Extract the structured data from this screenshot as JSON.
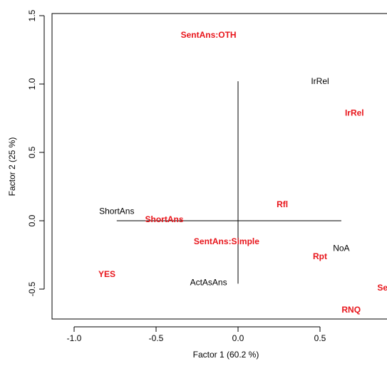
{
  "chart_data": {
    "type": "scatter",
    "title": "",
    "xlabel": "Factor 1  (60.2 %)",
    "ylabel": "Factor 2  (25 %)",
    "xlim": [
      -1.2,
      0.9
    ],
    "ylim": [
      -0.72,
      1.52
    ],
    "xticks": [
      {
        "value": -1.0,
        "label": "-1.0"
      },
      {
        "value": -0.5,
        "label": "-0.5"
      },
      {
        "value": 0.0,
        "label": "0.0"
      },
      {
        "value": 0.5,
        "label": "0.5"
      }
    ],
    "yticks": [
      {
        "value": -0.5,
        "label": "-0.5"
      },
      {
        "value": 0.0,
        "label": "0.0"
      },
      {
        "value": 0.5,
        "label": "0.5"
      },
      {
        "value": 1.0,
        "label": "1.0"
      },
      {
        "value": 1.5,
        "label": "1.5"
      }
    ],
    "cross_lines": {
      "horizontal": {
        "y": 0.0,
        "x_from": -0.74,
        "x_to": 0.63
      },
      "vertical": {
        "x": 0.0,
        "y_from": -0.46,
        "y_to": 1.02
      }
    },
    "colors": {
      "group_1": "#000000",
      "group_2": "#e8151b"
    },
    "series": [
      {
        "color": "#000000",
        "bold": false,
        "points": [
          {
            "label": "IrRel",
            "x": 0.5,
            "y": 1.02
          },
          {
            "label": "ShortAns",
            "x": -0.74,
            "y": 0.07
          },
          {
            "label": "NoA",
            "x": 0.63,
            "y": -0.2
          },
          {
            "label": "ActAsAns",
            "x": -0.18,
            "y": -0.45
          }
        ]
      },
      {
        "color": "#e8151b",
        "bold": true,
        "points": [
          {
            "label": "SentAns:OTH",
            "x": -0.18,
            "y": 1.36
          },
          {
            "label": "IrRel",
            "x": 0.71,
            "y": 0.79
          },
          {
            "label": "Rfl",
            "x": 0.27,
            "y": 0.12
          },
          {
            "label": "ShortAns",
            "x": -0.45,
            "y": 0.01
          },
          {
            "label": "SentAns:Simple",
            "x": -0.07,
            "y": -0.15
          },
          {
            "label": "Rpt",
            "x": 0.5,
            "y": -0.26
          },
          {
            "label": "YES",
            "x": -0.8,
            "y": -0.39
          },
          {
            "label": "Set",
            "x": 0.89,
            "y": -0.49
          },
          {
            "label": "RNQ",
            "x": 0.69,
            "y": -0.65
          }
        ]
      }
    ]
  }
}
